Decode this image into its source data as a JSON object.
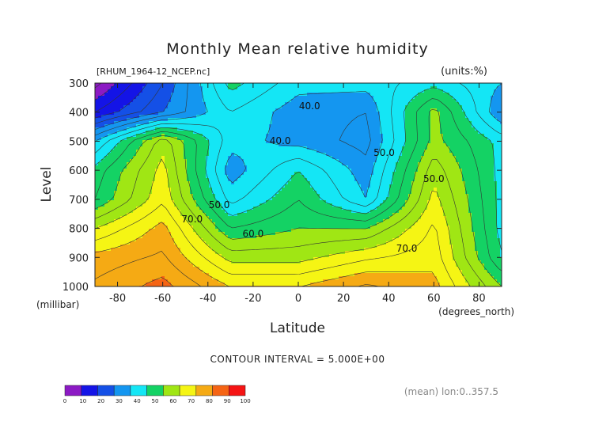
{
  "chart_data": {
    "type": "contour",
    "title": "Monthly Mean relative humidity",
    "file_label": "[RHUM_1964-12_NCEP.nc]",
    "units_label": "(units:%)",
    "xlabel": "Latitude",
    "x_unit": "(degrees_north)",
    "ylabel": "Level",
    "y_unit": "(millibar)",
    "x_ticks": [
      "-80",
      "-60",
      "-40",
      "-20",
      "0",
      "20",
      "40",
      "60",
      "80"
    ],
    "x_tick_values": [
      -80,
      -60,
      -40,
      -20,
      0,
      20,
      40,
      60,
      80
    ],
    "y_ticks": [
      "300",
      "400",
      "500",
      "600",
      "700",
      "800",
      "900",
      "1000"
    ],
    "y_tick_values": [
      300,
      400,
      500,
      600,
      700,
      800,
      900,
      1000
    ],
    "xlim": [
      -90,
      90
    ],
    "ylim": [
      1000,
      300
    ],
    "contour_interval_text": "CONTOUR INTERVAL = 5.000E+00",
    "mean_text": "(mean) lon:0..357.5",
    "contour_labels": [
      {
        "text": "40.0",
        "lat": 5,
        "level": 390
      },
      {
        "text": "40.0",
        "lat": -8,
        "level": 510
      },
      {
        "text": "50.0",
        "lat": 38,
        "level": 550
      },
      {
        "text": "50.0",
        "lat": 60,
        "level": 640
      },
      {
        "text": "50.0",
        "lat": -35,
        "level": 730
      },
      {
        "text": "60.0",
        "lat": -20,
        "level": 830
      },
      {
        "text": "70.0",
        "lat": -47,
        "level": 780
      },
      {
        "text": "70.0",
        "lat": 48,
        "level": 880
      }
    ],
    "colorbar": {
      "ticks": [
        "0",
        "10",
        "20",
        "30",
        "40",
        "50",
        "60",
        "70",
        "80",
        "90",
        "100"
      ],
      "colors": [
        "#8c1ac4",
        "#1414e6",
        "#1450e6",
        "#1496f0",
        "#14e6f5",
        "#14d264",
        "#a0e614",
        "#f5f514",
        "#f5aa14",
        "#f56414",
        "#f51414"
      ]
    },
    "grid_lat": [
      -90,
      -60,
      -30,
      0,
      30,
      60,
      90
    ],
    "grid_level": [
      300,
      400,
      500,
      600,
      700,
      800,
      900,
      1000
    ],
    "values": [
      [
        3,
        25,
        52,
        42,
        42,
        48,
        40
      ],
      [
        15,
        30,
        45,
        37,
        35,
        62,
        35
      ],
      [
        40,
        68,
        42,
        38,
        33,
        62,
        48
      ],
      [
        52,
        72,
        37,
        50,
        37,
        68,
        48
      ],
      [
        55,
        74,
        43,
        55,
        40,
        72,
        48
      ],
      [
        70,
        82,
        55,
        60,
        60,
        76,
        48
      ],
      [
        82,
        86,
        68,
        68,
        74,
        78,
        50
      ],
      [
        86,
        92,
        80,
        80,
        86,
        82,
        60
      ]
    ]
  }
}
